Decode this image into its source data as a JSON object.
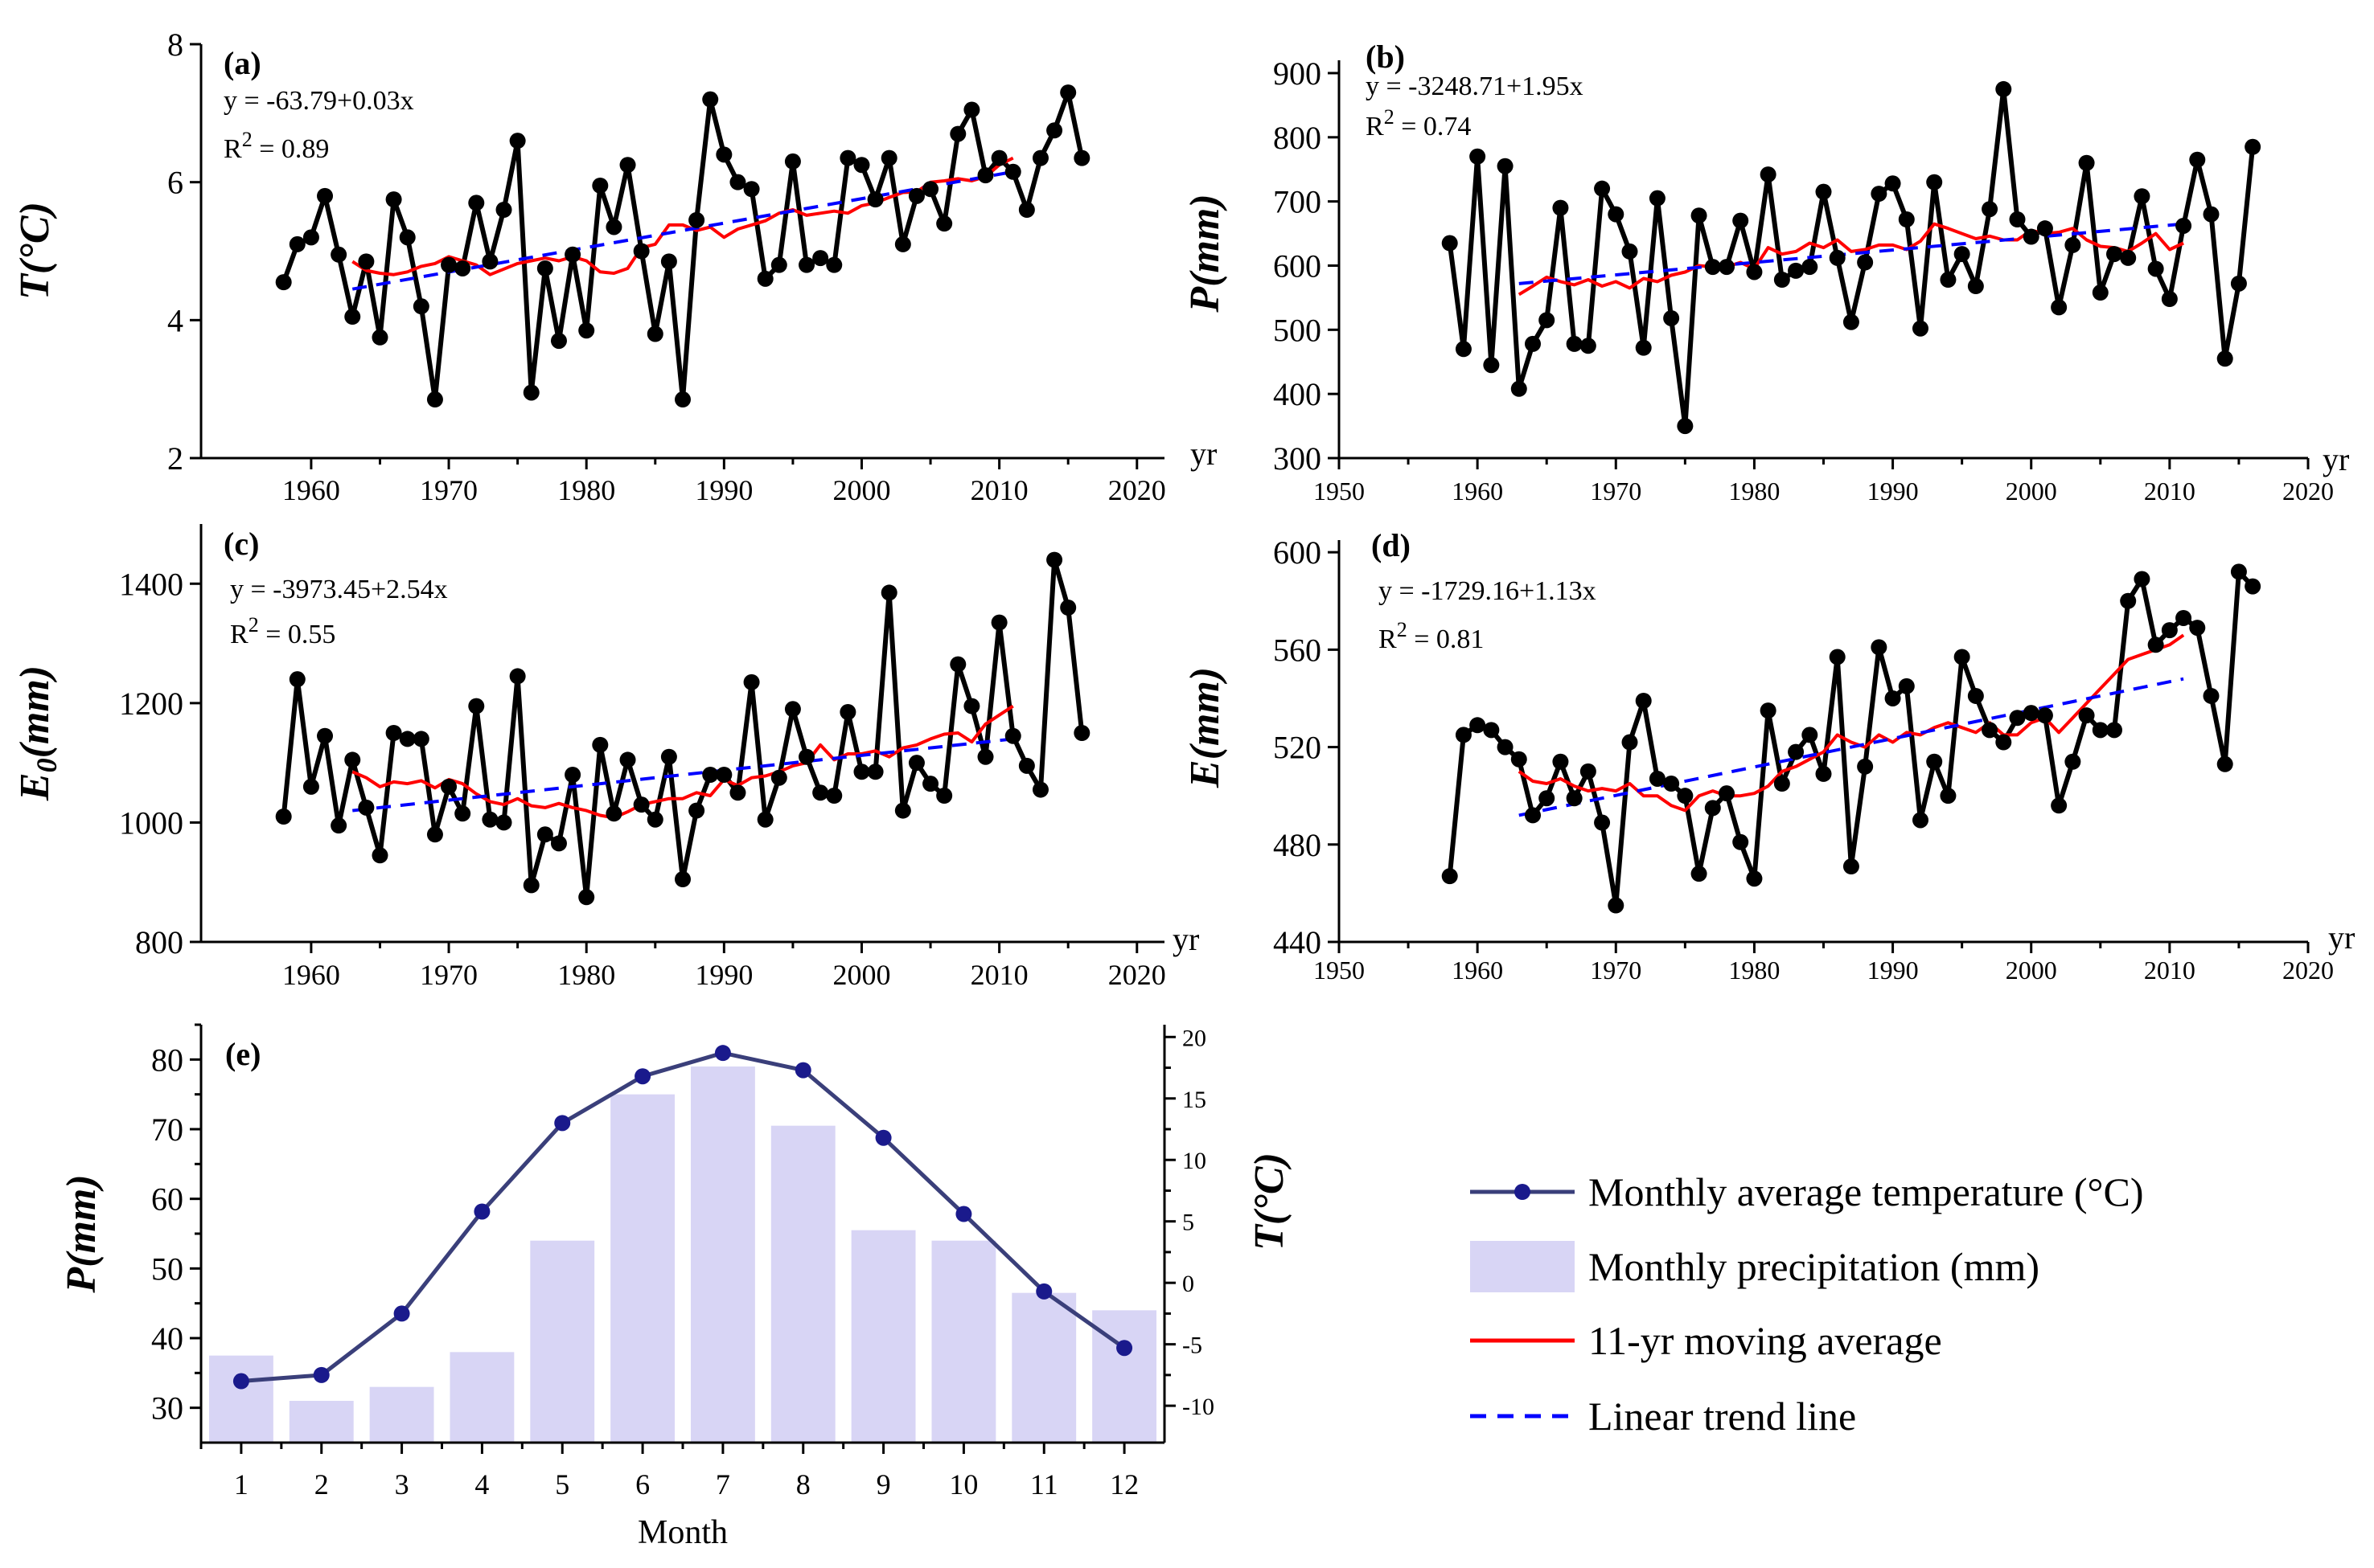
{
  "chart_data": [
    {
      "id": "a",
      "type": "line",
      "panel_label": "(a)",
      "ylabel": "T(°C)",
      "x_unit": "yr",
      "equation": "y = -63.79+0.03x",
      "r2_prefix": "R",
      "r2_exponent": "2",
      "r2_value": " = 0.89",
      "xlim": [
        1952,
        2022
      ],
      "ylim": [
        2,
        8
      ],
      "xticks": [
        1960,
        1970,
        1980,
        1990,
        2000,
        2010,
        2020
      ],
      "yticks": [
        2,
        4,
        6,
        8
      ],
      "colors": {
        "series": "#000000",
        "moving_average": "#ff0000",
        "trend": "#0000ff"
      },
      "x": [
        1958,
        1959,
        1960,
        1961,
        1962,
        1963,
        1964,
        1965,
        1966,
        1967,
        1968,
        1969,
        1970,
        1971,
        1972,
        1973,
        1974,
        1975,
        1976,
        1977,
        1978,
        1979,
        1980,
        1981,
        1982,
        1983,
        1984,
        1985,
        1986,
        1987,
        1988,
        1989,
        1990,
        1991,
        1992,
        1993,
        1994,
        1995,
        1996,
        1997,
        1998,
        1999,
        2000,
        2001,
        2002,
        2003,
        2004,
        2005,
        2006,
        2007,
        2008,
        2009,
        2010,
        2011,
        2012,
        2013,
        2014,
        2015,
        2016
      ],
      "values": [
        4.55,
        5.1,
        5.2,
        5.8,
        4.95,
        4.05,
        4.85,
        3.75,
        5.75,
        5.2,
        4.2,
        2.85,
        4.8,
        4.75,
        5.7,
        4.85,
        5.6,
        6.6,
        2.95,
        4.75,
        3.7,
        4.95,
        3.85,
        5.95,
        5.35,
        6.25,
        5.0,
        3.8,
        4.85,
        2.85,
        5.45,
        7.2,
        6.4,
        6.0,
        5.9,
        4.6,
        4.8,
        6.3,
        4.8,
        4.9,
        4.8,
        6.35,
        6.25,
        5.75,
        6.35,
        5.1,
        5.8,
        5.9,
        5.4,
        6.7,
        7.05,
        6.1,
        6.35,
        6.15,
        5.6,
        6.35,
        6.75,
        7.3,
        6.35
      ],
      "moving_average_x": [
        1963,
        1964,
        1965,
        1966,
        1967,
        1968,
        1969,
        1970,
        1971,
        1972,
        1973,
        1974,
        1975,
        1976,
        1977,
        1978,
        1979,
        1980,
        1981,
        1982,
        1983,
        1984,
        1985,
        1986,
        1987,
        1988,
        1989,
        1990,
        1991,
        1992,
        1993,
        1994,
        1995,
        1996,
        1997,
        1998,
        1999,
        2000,
        2001,
        2002,
        2003,
        2004,
        2005,
        2006,
        2007,
        2008,
        2009,
        2010,
        2011
      ],
      "moving_average": [
        4.85,
        4.72,
        4.68,
        4.66,
        4.7,
        4.78,
        4.82,
        4.92,
        4.86,
        4.8,
        4.66,
        4.74,
        4.82,
        4.86,
        4.9,
        4.86,
        4.92,
        4.86,
        4.7,
        4.68,
        4.75,
        5.05,
        5.1,
        5.38,
        5.38,
        5.3,
        5.35,
        5.2,
        5.32,
        5.38,
        5.44,
        5.55,
        5.6,
        5.52,
        5.55,
        5.58,
        5.55,
        5.66,
        5.7,
        5.78,
        5.85,
        5.86,
        6.0,
        6.02,
        6.05,
        6.02,
        6.08,
        6.25,
        6.35
      ],
      "trend_x": [
        1963,
        2011
      ],
      "trend": [
        4.45,
        6.15
      ]
    },
    {
      "id": "b",
      "type": "line",
      "panel_label": "(b)",
      "ylabel": "P(mm)",
      "x_unit": "yr",
      "equation": "y = -3248.71+1.95x",
      "r2_prefix": "R",
      "r2_exponent": "2",
      "r2_value": " = 0.74",
      "xlim": [
        1950,
        2020
      ],
      "ylim": [
        300,
        920
      ],
      "xticks": [
        1950,
        1960,
        1970,
        1980,
        1990,
        2000,
        2010,
        2020
      ],
      "yticks": [
        300,
        400,
        500,
        600,
        700,
        800,
        900
      ],
      "colors": {
        "series": "#000000",
        "moving_average": "#ff0000",
        "trend": "#0000ff"
      },
      "x": [
        1958,
        1959,
        1960,
        1961,
        1962,
        1963,
        1964,
        1965,
        1966,
        1967,
        1968,
        1969,
        1970,
        1971,
        1972,
        1973,
        1974,
        1975,
        1976,
        1977,
        1978,
        1979,
        1980,
        1981,
        1982,
        1983,
        1984,
        1985,
        1986,
        1987,
        1988,
        1989,
        1990,
        1991,
        1992,
        1993,
        1994,
        1995,
        1996,
        1997,
        1998,
        1999,
        2000,
        2001,
        2002,
        2003,
        2004,
        2005,
        2006,
        2007,
        2008,
        2009,
        2010,
        2011,
        2012,
        2013,
        2014,
        2015,
        2016
      ],
      "values": [
        635,
        470,
        770,
        445,
        755,
        408,
        478,
        515,
        690,
        478,
        475,
        720,
        680,
        622,
        472,
        705,
        518,
        350,
        678,
        598,
        598,
        670,
        590,
        742,
        578,
        592,
        598,
        715,
        612,
        512,
        605,
        712,
        728,
        672,
        502,
        730,
        578,
        618,
        568,
        688,
        875,
        672,
        645,
        658,
        535,
        632,
        760,
        558,
        618,
        612,
        708,
        595,
        548,
        662,
        765,
        680,
        455,
        572,
        785
      ],
      "moving_average_x": [
        1963,
        1964,
        1965,
        1966,
        1967,
        1968,
        1969,
        1970,
        1971,
        1972,
        1973,
        1974,
        1975,
        1976,
        1977,
        1978,
        1979,
        1980,
        1981,
        1982,
        1983,
        1984,
        1985,
        1986,
        1987,
        1988,
        1989,
        1990,
        1991,
        1992,
        1993,
        1994,
        1995,
        1996,
        1997,
        1998,
        1999,
        2000,
        2001,
        2002,
        2003,
        2004,
        2005,
        2006,
        2007,
        2008,
        2009,
        2010,
        2011
      ],
      "moving_average": [
        555,
        568,
        582,
        575,
        570,
        578,
        568,
        575,
        565,
        580,
        575,
        585,
        590,
        600,
        598,
        598,
        605,
        595,
        628,
        618,
        622,
        635,
        628,
        640,
        622,
        625,
        632,
        632,
        625,
        638,
        665,
        658,
        650,
        642,
        646,
        640,
        640,
        655,
        650,
        652,
        658,
        640,
        630,
        628,
        622,
        635,
        650,
        625,
        635
      ],
      "trend_x": [
        1963,
        2011
      ],
      "trend": [
        572,
        665
      ]
    },
    {
      "id": "c",
      "type": "line",
      "panel_label": "(c)",
      "ylabel": "E0(mm)",
      "ylabel_main": "E",
      "ylabel_sub": "0",
      "ylabel_tail": "(mm)",
      "x_unit": "yr",
      "equation": "y = -3973.45+2.54x",
      "r2_prefix": "R",
      "r2_exponent": "2",
      "r2_value": " = 0.55",
      "xlim": [
        1952,
        2022
      ],
      "ylim": [
        800,
        1500
      ],
      "xticks": [
        1960,
        1970,
        1980,
        1990,
        2000,
        2010,
        2020
      ],
      "yticks": [
        800,
        1000,
        1200,
        1400
      ],
      "colors": {
        "series": "#000000",
        "moving_average": "#ff0000",
        "trend": "#0000ff"
      },
      "x": [
        1958,
        1959,
        1960,
        1961,
        1962,
        1963,
        1964,
        1965,
        1966,
        1967,
        1968,
        1969,
        1970,
        1971,
        1972,
        1973,
        1974,
        1975,
        1976,
        1977,
        1978,
        1979,
        1980,
        1981,
        1982,
        1983,
        1984,
        1985,
        1986,
        1987,
        1988,
        1989,
        1990,
        1991,
        1992,
        1993,
        1994,
        1995,
        1996,
        1997,
        1998,
        1999,
        2000,
        2001,
        2002,
        2003,
        2004,
        2005,
        2006,
        2007,
        2008,
        2009,
        2010,
        2011,
        2012,
        2013,
        2014,
        2015,
        2016
      ],
      "values": [
        1010,
        1240,
        1060,
        1145,
        995,
        1105,
        1025,
        945,
        1150,
        1140,
        1140,
        980,
        1060,
        1015,
        1195,
        1005,
        1000,
        1245,
        895,
        980,
        965,
        1080,
        875,
        1130,
        1015,
        1105,
        1030,
        1005,
        1110,
        905,
        1020,
        1080,
        1080,
        1050,
        1235,
        1005,
        1075,
        1190,
        1110,
        1050,
        1045,
        1185,
        1085,
        1085,
        1385,
        1020,
        1100,
        1065,
        1045,
        1265,
        1195,
        1110,
        1335,
        1145,
        1095,
        1055,
        1440,
        1360,
        1150
      ],
      "moving_average_x": [
        1963,
        1964,
        1965,
        1966,
        1967,
        1968,
        1969,
        1970,
        1971,
        1972,
        1973,
        1974,
        1975,
        1976,
        1977,
        1978,
        1979,
        1980,
        1981,
        1982,
        1983,
        1984,
        1985,
        1986,
        1987,
        1988,
        1989,
        1990,
        1991,
        1992,
        1993,
        1994,
        1995,
        1996,
        1997,
        1998,
        1999,
        2000,
        2001,
        2002,
        2003,
        2004,
        2005,
        2006,
        2007,
        2008,
        2009,
        2010,
        2011
      ],
      "moving_average": [
        1085,
        1075,
        1060,
        1068,
        1065,
        1070,
        1058,
        1072,
        1065,
        1048,
        1035,
        1030,
        1040,
        1028,
        1025,
        1032,
        1025,
        1020,
        1012,
        1008,
        1018,
        1030,
        1035,
        1040,
        1040,
        1050,
        1045,
        1072,
        1062,
        1075,
        1078,
        1085,
        1095,
        1100,
        1130,
        1105,
        1115,
        1115,
        1120,
        1110,
        1125,
        1130,
        1140,
        1148,
        1150,
        1135,
        1165,
        1180,
        1195
      ],
      "trend_x": [
        1963,
        2011
      ],
      "trend": [
        1020,
        1140
      ]
    },
    {
      "id": "d",
      "type": "line",
      "panel_label": "(d)",
      "ylabel": "E(mm)",
      "x_unit": "yr",
      "equation": "y = -1729.16+1.13x",
      "r2_prefix": "R",
      "r2_exponent": "2",
      "r2_value": " = 0.81",
      "xlim": [
        1950,
        2020
      ],
      "ylim": [
        440,
        605
      ],
      "xticks": [
        1950,
        1960,
        1970,
        1980,
        1990,
        2000,
        2010,
        2020
      ],
      "yticks": [
        440,
        480,
        520,
        560,
        600
      ],
      "colors": {
        "series": "#000000",
        "moving_average": "#ff0000",
        "trend": "#0000ff"
      },
      "x": [
        1958,
        1959,
        1960,
        1961,
        1962,
        1963,
        1964,
        1965,
        1966,
        1967,
        1968,
        1969,
        1970,
        1971,
        1972,
        1973,
        1974,
        1975,
        1976,
        1977,
        1978,
        1979,
        1980,
        1981,
        1982,
        1983,
        1984,
        1985,
        1986,
        1987,
        1988,
        1989,
        1990,
        1991,
        1992,
        1993,
        1994,
        1995,
        1996,
        1997,
        1998,
        1999,
        2000,
        2001,
        2002,
        2003,
        2004,
        2005,
        2006,
        2007,
        2008,
        2009,
        2010,
        2011,
        2012,
        2013,
        2014,
        2015,
        2016
      ],
      "values": [
        467,
        525,
        529,
        527,
        520,
        515,
        492,
        499,
        514,
        499,
        510,
        489,
        455,
        522,
        539,
        507,
        505,
        500,
        468,
        495,
        501,
        481,
        466,
        535,
        505,
        518,
        525,
        509,
        557,
        471,
        512,
        561,
        540,
        545,
        490,
        514,
        500,
        557,
        541,
        527,
        522,
        532,
        534,
        533,
        496,
        514,
        533,
        527,
        527,
        580,
        589,
        562,
        568,
        573,
        569,
        541,
        513,
        592,
        586
      ],
      "moving_average_x": [
        1963,
        1964,
        1965,
        1966,
        1967,
        1968,
        1969,
        1970,
        1971,
        1972,
        1973,
        1974,
        1975,
        1976,
        1977,
        1978,
        1979,
        1980,
        1981,
        1982,
        1983,
        1984,
        1985,
        1986,
        1987,
        1988,
        1989,
        1990,
        1991,
        1992,
        1993,
        1994,
        1995,
        1996,
        1997,
        1998,
        1999,
        2000,
        2001,
        2002,
        2003,
        2004,
        2005,
        2006,
        2007,
        2008,
        2009,
        2010,
        2011
      ],
      "moving_average": [
        510,
        506,
        505,
        507,
        504,
        502,
        503,
        502,
        505,
        500,
        500,
        496,
        494,
        500,
        502,
        500,
        500,
        501,
        504,
        510,
        512,
        515,
        518,
        525,
        522,
        520,
        525,
        522,
        526,
        525,
        528,
        530,
        528,
        526,
        530,
        525,
        525,
        530,
        532,
        526,
        532,
        538,
        544,
        550,
        556,
        558,
        560,
        562,
        566
      ],
      "trend_x": [
        1963,
        2011
      ],
      "trend": [
        492,
        548
      ]
    },
    {
      "id": "e",
      "type": "bar+line",
      "panel_label": "(e)",
      "xlabel": "Month",
      "ylabel_left": "P(mm)",
      "ylabel_right": "T(°C)",
      "categories": [
        "1",
        "2",
        "3",
        "4",
        "5",
        "6",
        "7",
        "8",
        "9",
        "10",
        "11",
        "12"
      ],
      "ylim_left": [
        25,
        85
      ],
      "ylim_right": [
        -13,
        21
      ],
      "yticks_left": [
        30,
        40,
        50,
        60,
        70,
        80
      ],
      "yticks_right": [
        -10,
        -5,
        0,
        5,
        10,
        15,
        20
      ],
      "colors": {
        "bars": "#d8d5f5",
        "line": "#3a3f7a",
        "marker": "#1a1a8c"
      },
      "series": [
        {
          "name": "Monthly precipitation (mm)",
          "axis": "left",
          "values": [
            37.5,
            31.0,
            33.0,
            38.0,
            54.0,
            75.0,
            79.0,
            70.5,
            55.5,
            54.0,
            46.5,
            44.0
          ]
        },
        {
          "name": "Monthly average temperature (°C)",
          "axis": "right",
          "values": [
            -8.0,
            -7.5,
            -2.5,
            5.8,
            13.0,
            16.8,
            18.7,
            17.3,
            11.8,
            5.6,
            -0.7,
            -5.3
          ]
        }
      ]
    }
  ],
  "legend": {
    "items": [
      {
        "label": "Monthly average temperature (°C)",
        "kind": "line-marker",
        "color": "#3a3f7a"
      },
      {
        "label": "Monthly precipitation (mm)",
        "kind": "bar",
        "color": "#d8d5f5"
      },
      {
        "label": "11-yr moving average",
        "kind": "line",
        "color": "#ff0000"
      },
      {
        "label": "Linear trend line",
        "kind": "dashed",
        "color": "#0000ff"
      }
    ]
  }
}
